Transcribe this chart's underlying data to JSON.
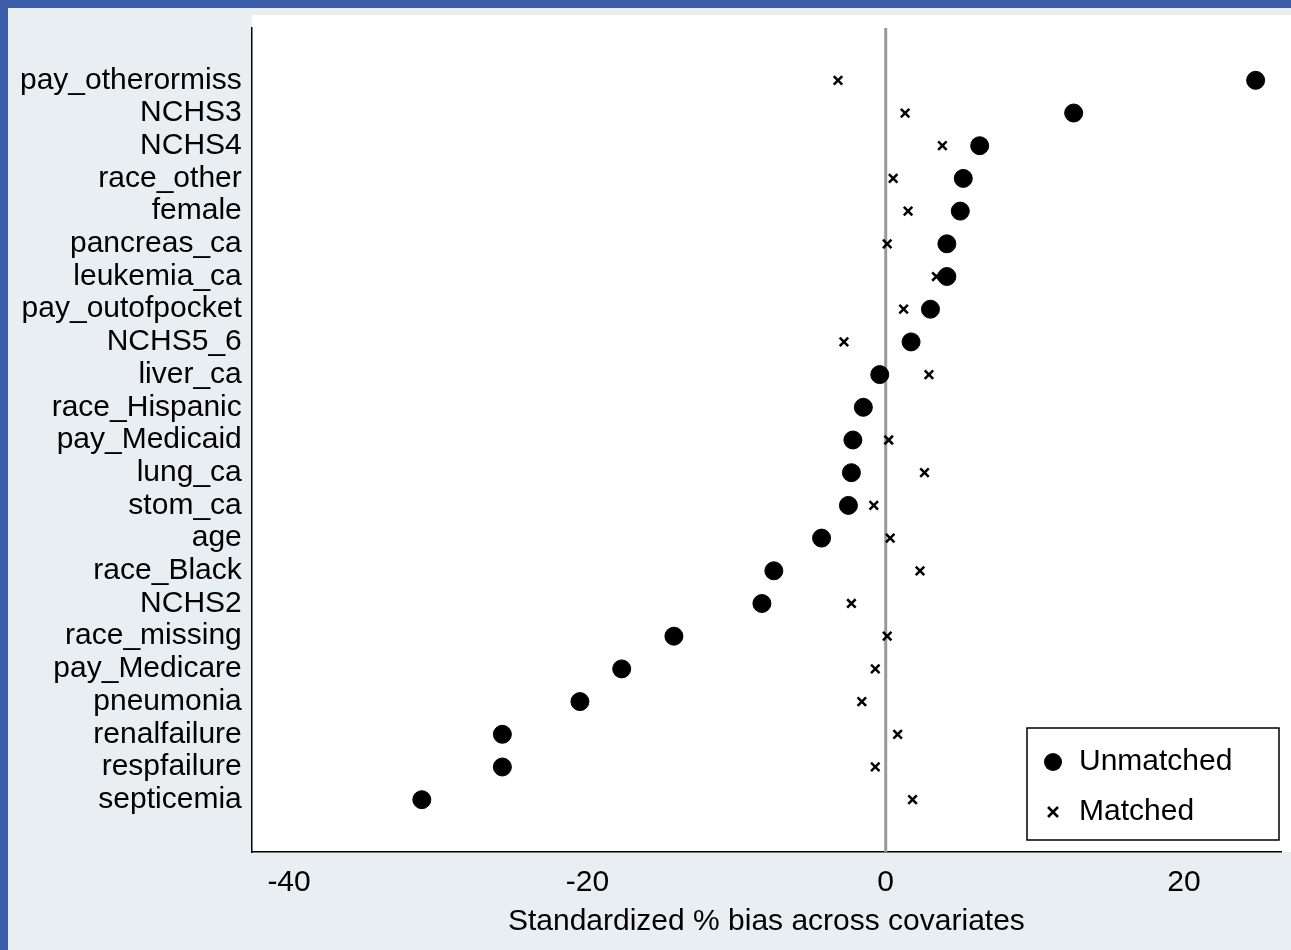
{
  "chart_data": {
    "type": "scatter",
    "xlabel": "Standardized % bias across covariates",
    "categories": [
      "pay_otherormiss",
      "NCHS3",
      "NCHS4",
      "race_other",
      "female",
      "pancreas_ca",
      "leukemia_ca",
      "pay_outofpocket",
      "NCHS5_6",
      "liver_ca",
      "race_Hispanic",
      "pay_Medicaid",
      "lung_ca",
      "stom_ca",
      "age",
      "race_Black",
      "NCHS2",
      "race_missing",
      "pay_Medicare",
      "pneumonia",
      "renalfailure",
      "respfailure",
      "septicemia"
    ],
    "series": [
      {
        "name": "Unmatched",
        "color": "#000000",
        "marker": "circle",
        "values": [
          24.8,
          12.6,
          6.3,
          5.2,
          5.0,
          4.1,
          4.1,
          3.0,
          1.7,
          -0.4,
          -1.5,
          -2.2,
          -2.3,
          -2.5,
          -4.3,
          -7.5,
          -8.3,
          -14.2,
          -17.7,
          -20.5,
          -25.7,
          -25.7,
          -31.1
        ]
      },
      {
        "name": "Matched",
        "color": "#000000",
        "marker": "cross",
        "values": [
          -3.2,
          1.3,
          3.8,
          0.5,
          1.5,
          0.1,
          3.4,
          1.2,
          -2.8,
          2.9,
          null,
          0.2,
          2.6,
          -0.8,
          0.3,
          2.3,
          -2.3,
          0.1,
          -0.7,
          -1.6,
          0.8,
          -0.7,
          1.8
        ]
      }
    ],
    "orientation": "horizontal",
    "xlim": [
      -42.5,
      26.5
    ],
    "xticks": [
      -40,
      -20,
      0,
      20
    ],
    "ref_lines": [
      {
        "axis": "x",
        "value": 0,
        "color": "#999999"
      }
    ],
    "grid": false,
    "legend": "bottom right"
  }
}
